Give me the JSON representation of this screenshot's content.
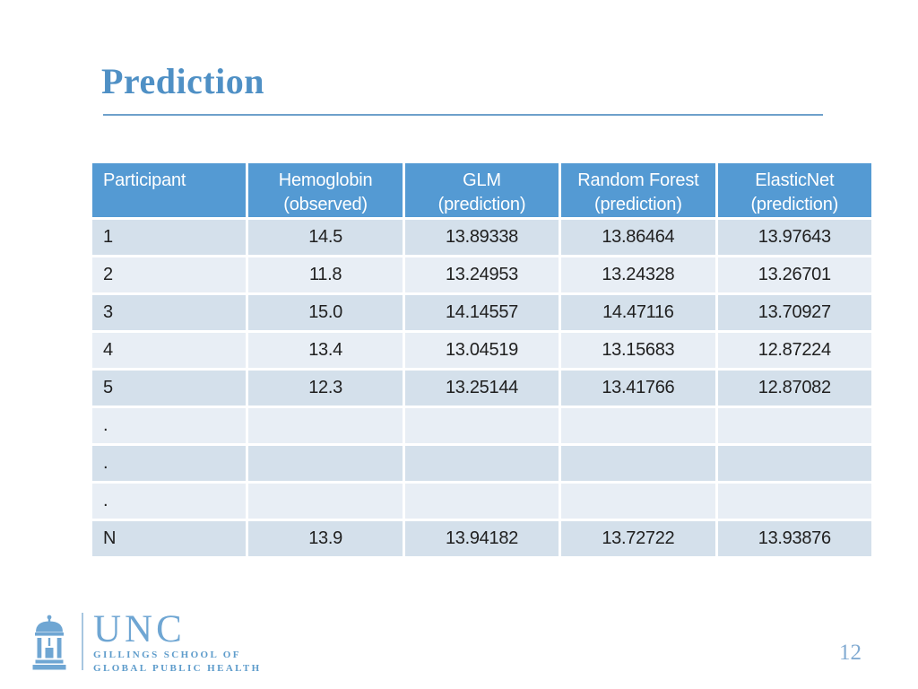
{
  "slide": {
    "title": "Prediction",
    "page_number": "12"
  },
  "table": {
    "columns": [
      {
        "label": "Participant",
        "sublabel": ""
      },
      {
        "label": "Hemoglobin",
        "sublabel": "(observed)"
      },
      {
        "label": "GLM",
        "sublabel": "(prediction)"
      },
      {
        "label": "Random Forest",
        "sublabel": "(prediction)"
      },
      {
        "label": "ElasticNet",
        "sublabel": "(prediction)"
      }
    ],
    "rows": [
      [
        "1",
        "14.5",
        "13.89338",
        "13.86464",
        "13.97643"
      ],
      [
        "2",
        "11.8",
        "13.24953",
        "13.24328",
        "13.26701"
      ],
      [
        "3",
        "15.0",
        "14.14557",
        "14.47116",
        "13.70927"
      ],
      [
        "4",
        "13.4",
        "13.04519",
        "13.15683",
        "12.87224"
      ],
      [
        "5",
        "12.3",
        "13.25144",
        "13.41766",
        "12.87082"
      ],
      [
        ".",
        "",
        "",
        "",
        ""
      ],
      [
        ".",
        "",
        "",
        "",
        ""
      ],
      [
        ".",
        "",
        "",
        "",
        ""
      ],
      [
        "N",
        "13.9",
        "13.94182",
        "13.72722",
        "13.93876"
      ]
    ]
  },
  "logo": {
    "icon": "old-well-icon",
    "acronym": "UNC",
    "school_line1": "GILLINGS SCHOOL OF",
    "school_line2": "GLOBAL PUBLIC HEALTH"
  },
  "colors": {
    "title": "#4F90C5",
    "rule": "#6EA0CB",
    "header_bg": "#549AD3",
    "header_text": "#FFFFFF",
    "row_dark": "#D4E0EB",
    "row_light": "#E8EEF5",
    "cell_text": "#202020",
    "logo_blue": "#6FA6D3",
    "logo_small": "#5E9CCB",
    "logo_divider": "#A7C6E0",
    "page_number": "#82ABD2"
  }
}
